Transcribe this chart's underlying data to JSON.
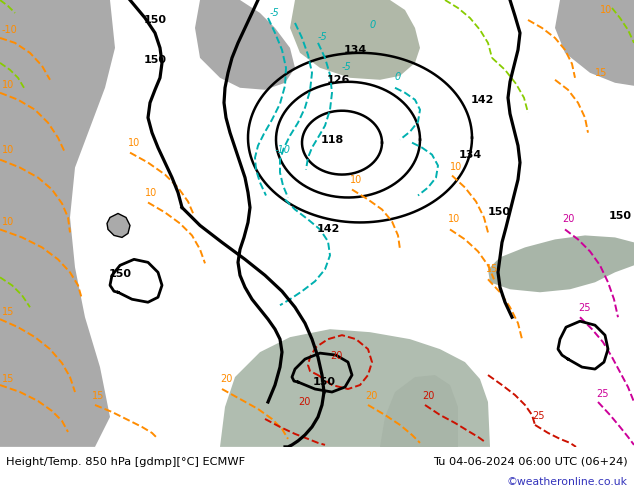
{
  "title_left": "Height/Temp. 850 hPa [gdmp][°C] ECMWF",
  "title_right": "Tu 04-06-2024 06:00 UTC (06+24)",
  "credit": "©weatheronline.co.uk",
  "land_color": "#c8dba0",
  "ocean_color": "#aaaaaa",
  "med_color": "#b8c8b0",
  "bottom_bg": "#ffffff",
  "credit_color": "#3333bb",
  "black": "#000000",
  "cyan": "#00b0b0",
  "orange": "#ff8c00",
  "green_yel": "#88cc00",
  "red": "#cc1100",
  "magenta": "#cc0099"
}
